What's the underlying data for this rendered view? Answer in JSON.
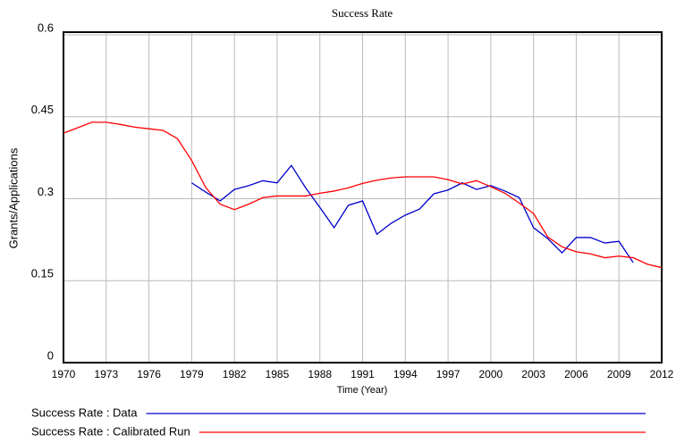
{
  "chart_data": {
    "type": "line",
    "title": "Success Rate",
    "x_label": "Time (Year)",
    "y_label": "Grants/Applications",
    "xlim": [
      1970,
      2012
    ],
    "xticks": [
      1970,
      1973,
      1976,
      1979,
      1982,
      1985,
      1988,
      1991,
      1994,
      1997,
      2000,
      2003,
      2006,
      2009,
      2012
    ],
    "ylim": [
      0,
      0.6
    ],
    "yticks": [
      0,
      0.15,
      0.3,
      0.45,
      0.6
    ],
    "grid": true,
    "series": [
      {
        "name": "Success Rate : Data",
        "color": "#0000cc",
        "x": [
          1979,
          1980,
          1981,
          1982,
          1983,
          1984,
          1985,
          1986,
          1987,
          1988,
          1989,
          1990,
          1991,
          1992,
          1993,
          1994,
          1995,
          1996,
          1997,
          1998,
          1999,
          2000,
          2001,
          2002,
          2003,
          2004,
          2005,
          2006,
          2007,
          2008,
          2009,
          2010
        ],
        "values": [
          0.329,
          0.312,
          0.296,
          0.317,
          0.324,
          0.333,
          0.329,
          0.361,
          0.32,
          0.284,
          0.247,
          0.288,
          0.296,
          0.235,
          0.255,
          0.27,
          0.281,
          0.309,
          0.316,
          0.329,
          0.317,
          0.324,
          0.314,
          0.302,
          0.247,
          0.227,
          0.201,
          0.229,
          0.229,
          0.219,
          0.222,
          0.183
        ]
      },
      {
        "name": "Success Rate : Calibrated Run",
        "color": "#ff0000",
        "x": [
          1970,
          1971,
          1972,
          1973,
          1974,
          1975,
          1976,
          1977,
          1978,
          1979,
          1980,
          1981,
          1982,
          1983,
          1984,
          1985,
          1986,
          1987,
          1988,
          1989,
          1990,
          1991,
          1992,
          1993,
          1994,
          1995,
          1996,
          1997,
          1998,
          1999,
          2000,
          2001,
          2002,
          2003,
          2004,
          2005,
          2006,
          2007,
          2008,
          2009,
          2010,
          2011,
          2012
        ],
        "values": [
          0.42,
          0.43,
          0.44,
          0.44,
          0.436,
          0.431,
          0.428,
          0.425,
          0.41,
          0.37,
          0.32,
          0.29,
          0.28,
          0.29,
          0.302,
          0.305,
          0.305,
          0.305,
          0.31,
          0.314,
          0.32,
          0.328,
          0.334,
          0.338,
          0.34,
          0.34,
          0.34,
          0.335,
          0.327,
          0.333,
          0.322,
          0.31,
          0.292,
          0.273,
          0.23,
          0.212,
          0.203,
          0.199,
          0.192,
          0.195,
          0.192,
          0.18,
          0.174
        ]
      }
    ]
  }
}
